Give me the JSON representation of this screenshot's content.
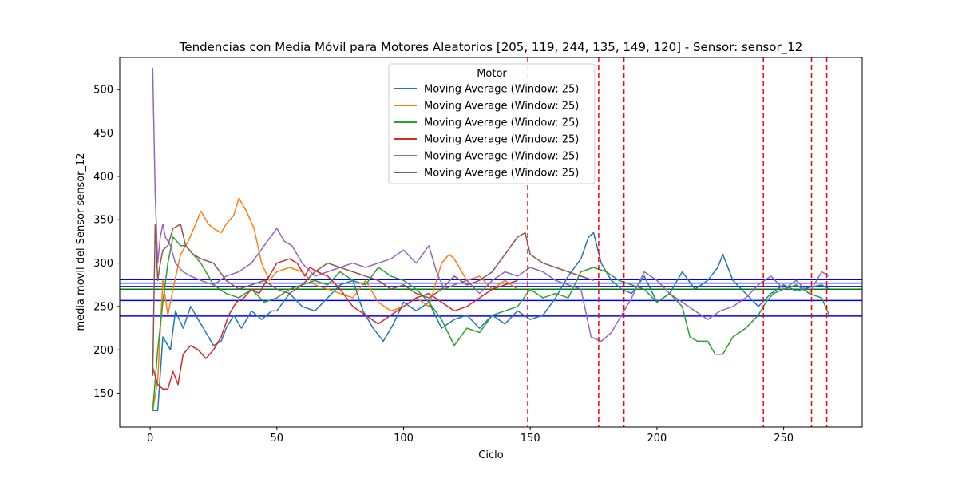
{
  "chart_data": {
    "type": "line",
    "title": "Tendencias con Media Móvil para Motores Aleatorios [205, 119, 244, 135, 149, 120] - Sensor: sensor_12",
    "xlabel": "Ciclo",
    "ylabel": "media movil del Sensor sensor_12",
    "xlim": [
      -12,
      281
    ],
    "ylim": [
      111,
      537
    ],
    "x_ticks": [
      0,
      50,
      100,
      150,
      200,
      250
    ],
    "y_ticks": [
      150,
      200,
      250,
      300,
      350,
      400,
      450,
      500
    ],
    "grid": false,
    "legend": {
      "title": "Motor",
      "placement": "upper-center"
    },
    "series": [
      {
        "name": "Moving Average (Window: 25)",
        "color": "#1f77b4",
        "x": [
          1,
          3,
          5,
          8,
          10,
          13,
          16,
          20,
          25,
          28,
          30,
          33,
          36,
          40,
          44,
          48,
          50,
          55,
          60,
          65,
          70,
          75,
          80,
          84,
          88,
          92,
          96,
          100,
          105,
          110,
          115,
          120,
          125,
          130,
          135,
          140,
          145,
          150,
          155,
          160,
          165,
          170,
          173,
          175,
          178,
          182,
          186,
          190,
          195,
          200,
          205,
          210,
          215,
          220,
          224,
          226,
          230,
          235,
          240,
          245,
          250,
          255,
          260,
          265,
          268
        ],
        "y": [
          130,
          130,
          215,
          200,
          245,
          225,
          250,
          230,
          205,
          210,
          225,
          240,
          225,
          245,
          235,
          245,
          245,
          265,
          250,
          245,
          260,
          275,
          280,
          245,
          225,
          210,
          230,
          255,
          245,
          255,
          225,
          235,
          240,
          225,
          240,
          230,
          245,
          235,
          240,
          260,
          285,
          305,
          330,
          335,
          300,
          280,
          270,
          265,
          285,
          255,
          265,
          290,
          270,
          280,
          295,
          310,
          280,
          265,
          250,
          265,
          275,
          268,
          272,
          275,
          270
        ]
      },
      {
        "name": "Moving Average (Window: 25)",
        "color": "#ff7f0e",
        "x": [
          1,
          3,
          5,
          7,
          9,
          12,
          15,
          18,
          20,
          23,
          25,
          28,
          30,
          33,
          35,
          38,
          41,
          44,
          47,
          50,
          55,
          60,
          65,
          70,
          75,
          80,
          85,
          90,
          95,
          100,
          105,
          110,
          115,
          118,
          120,
          125,
          130,
          135,
          140,
          145
        ],
        "y": [
          130,
          165,
          280,
          240,
          270,
          310,
          325,
          345,
          360,
          345,
          340,
          335,
          345,
          355,
          375,
          360,
          340,
          300,
          280,
          290,
          295,
          290,
          275,
          270,
          265,
          260,
          280,
          255,
          245,
          250,
          260,
          250,
          300,
          310,
          305,
          280,
          285,
          270,
          280,
          270
        ]
      },
      {
        "name": "Moving Average (Window: 25)",
        "color": "#2ca02c",
        "x": [
          1,
          3,
          5,
          7,
          9,
          12,
          14,
          17,
          20,
          25,
          30,
          35,
          40,
          45,
          50,
          55,
          60,
          65,
          70,
          75,
          80,
          85,
          90,
          95,
          100,
          105,
          110,
          115,
          120,
          125,
          130,
          135,
          140,
          145,
          150,
          155,
          160,
          165,
          170,
          175,
          180,
          185,
          190,
          195,
          200,
          205,
          210,
          213,
          216,
          220,
          223,
          226,
          230,
          235,
          240,
          243,
          246,
          250,
          255,
          260,
          265,
          268
        ],
        "y": [
          130,
          200,
          255,
          300,
          330,
          320,
          320,
          310,
          300,
          275,
          265,
          260,
          270,
          255,
          260,
          270,
          275,
          280,
          275,
          290,
          280,
          275,
          295,
          285,
          280,
          270,
          255,
          235,
          205,
          225,
          220,
          240,
          245,
          250,
          270,
          260,
          265,
          260,
          290,
          295,
          290,
          280,
          275,
          270,
          255,
          265,
          250,
          215,
          210,
          210,
          195,
          195,
          215,
          225,
          240,
          255,
          265,
          270,
          275,
          265,
          260,
          240
        ]
      },
      {
        "name": "Moving Average (Window: 25)",
        "color": "#d62728",
        "x": [
          1,
          3,
          5,
          7,
          9,
          11,
          13,
          16,
          19,
          22,
          25,
          28,
          31,
          34,
          37,
          40,
          43,
          46,
          50,
          55,
          58,
          61,
          63,
          66,
          70,
          75,
          80,
          85,
          90,
          95,
          100,
          105,
          110,
          115,
          120,
          125,
          130,
          135,
          140,
          145
        ],
        "y": [
          180,
          160,
          155,
          155,
          175,
          160,
          195,
          205,
          200,
          190,
          200,
          215,
          240,
          255,
          260,
          270,
          265,
          280,
          300,
          305,
          300,
          285,
          295,
          290,
          285,
          270,
          250,
          240,
          230,
          240,
          250,
          260,
          265,
          255,
          245,
          250,
          260,
          270,
          275,
          280
        ]
      },
      {
        "name": "Moving Average (Window: 25)",
        "color": "#9467bd",
        "x": [
          1,
          2,
          3,
          4,
          5,
          6,
          8,
          10,
          13,
          16,
          20,
          25,
          30,
          35,
          40,
          45,
          50,
          53,
          56,
          60,
          65,
          70,
          75,
          80,
          85,
          90,
          95,
          100,
          105,
          110,
          113,
          116,
          120,
          125,
          130,
          135,
          140,
          145,
          150,
          155,
          160,
          165,
          170,
          174,
          178,
          182,
          186,
          190,
          195,
          200,
          205,
          210,
          215,
          220,
          225,
          230,
          235,
          240,
          245,
          250,
          255,
          260,
          265,
          268
        ],
        "y": [
          525,
          380,
          300,
          330,
          345,
          330,
          320,
          300,
          290,
          285,
          280,
          275,
          285,
          290,
          300,
          320,
          340,
          325,
          320,
          300,
          285,
          290,
          295,
          300,
          295,
          300,
          305,
          315,
          300,
          320,
          290,
          270,
          275,
          280,
          265,
          280,
          290,
          285,
          295,
          290,
          280,
          275,
          270,
          215,
          210,
          220,
          240,
          260,
          290,
          280,
          265,
          255,
          245,
          235,
          245,
          250,
          260,
          275,
          285,
          270,
          280,
          265,
          290,
          285
        ]
      },
      {
        "name": "Moving Average (Window: 25)",
        "color": "#8c564b",
        "x": [
          1,
          2,
          3,
          4,
          5,
          7,
          9,
          12,
          14,
          17,
          20,
          25,
          30,
          35,
          40,
          45,
          50,
          55,
          60,
          65,
          70,
          75,
          80,
          85,
          90,
          95,
          100,
          105,
          110,
          115,
          120,
          125,
          130,
          135,
          140,
          145,
          148,
          150,
          155,
          160,
          165,
          170,
          175
        ],
        "y": [
          170,
          345,
          280,
          300,
          315,
          320,
          340,
          345,
          320,
          310,
          305,
          300,
          280,
          270,
          275,
          280,
          270,
          265,
          275,
          290,
          300,
          295,
          290,
          285,
          280,
          270,
          275,
          265,
          260,
          270,
          285,
          275,
          280,
          290,
          310,
          330,
          335,
          310,
          300,
          295,
          290,
          285,
          280
        ]
      }
    ],
    "hlines": [
      {
        "y": 281,
        "color": "#0000ff"
      },
      {
        "y": 277,
        "color": "#0000ff"
      },
      {
        "y": 273,
        "color": "#0000ff"
      },
      {
        "y": 270,
        "color": "#008000"
      },
      {
        "y": 257,
        "color": "#0000ff"
      },
      {
        "y": 239,
        "color": "#0000ff"
      }
    ],
    "vlines": [
      {
        "x": 149,
        "color": "#ff0000"
      },
      {
        "x": 177,
        "color": "#ff0000"
      },
      {
        "x": 187,
        "color": "#ff0000"
      },
      {
        "x": 242,
        "color": "#ff0000"
      },
      {
        "x": 261,
        "color": "#ff0000"
      },
      {
        "x": 267,
        "color": "#ff0000"
      }
    ]
  }
}
